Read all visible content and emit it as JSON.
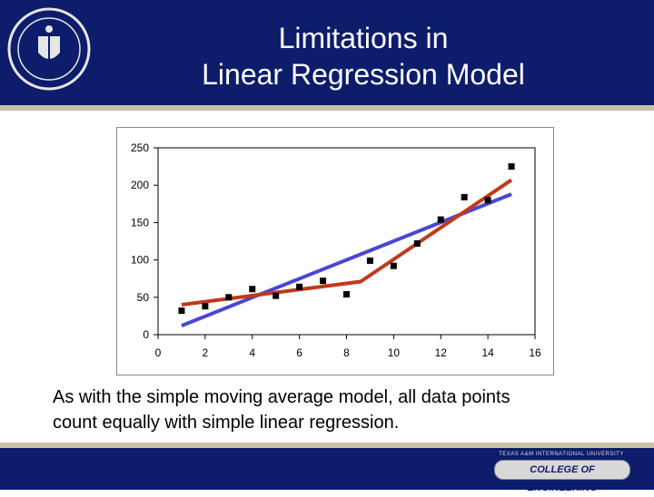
{
  "slide": {
    "title_line1": "Limitations in",
    "title_line2": "Linear Regression Model",
    "caption_line1": "As with the simple moving average model, all data points",
    "caption_line2": "count equally with simple linear regression.",
    "footer_small": "TEXAS A&M INTERNATIONAL UNIVERSITY",
    "footer_college": "COLLEGE OF ENGINEERING",
    "colors": {
      "header_bg": "#0d1d6b",
      "rule": "#c9c2a6",
      "trend_line": "#4a46d4",
      "piecewise_line": "#c0391b",
      "points": "#000000"
    }
  },
  "chart_data": {
    "type": "scatter",
    "x_ticks": [
      "0",
      "2",
      "4",
      "6",
      "8",
      "10",
      "12",
      "14",
      "16"
    ],
    "y_ticks": [
      "0",
      "50",
      "100",
      "150",
      "200",
      "250"
    ],
    "xlim": [
      0,
      16
    ],
    "ylim": [
      0,
      250
    ],
    "grid": false,
    "legend": "none",
    "points": [
      {
        "x": 1,
        "y": 32
      },
      {
        "x": 2,
        "y": 38
      },
      {
        "x": 3,
        "y": 50
      },
      {
        "x": 4,
        "y": 61
      },
      {
        "x": 5,
        "y": 52
      },
      {
        "x": 6,
        "y": 64
      },
      {
        "x": 7,
        "y": 72
      },
      {
        "x": 8,
        "y": 54
      },
      {
        "x": 9,
        "y": 99
      },
      {
        "x": 10,
        "y": 92
      },
      {
        "x": 11,
        "y": 122
      },
      {
        "x": 12,
        "y": 154
      },
      {
        "x": 13,
        "y": 184
      },
      {
        "x": 14,
        "y": 180
      },
      {
        "x": 15,
        "y": 225
      }
    ],
    "lines": [
      {
        "role": "linear-trend",
        "color": "#4a46d4",
        "points": [
          {
            "x": 1,
            "y": 12
          },
          {
            "x": 15,
            "y": 188
          }
        ]
      },
      {
        "role": "piecewise-fit",
        "color": "#c0391b",
        "points": [
          {
            "x": 1,
            "y": 40
          },
          {
            "x": 8.6,
            "y": 71
          },
          {
            "x": 15,
            "y": 207
          }
        ]
      }
    ]
  }
}
